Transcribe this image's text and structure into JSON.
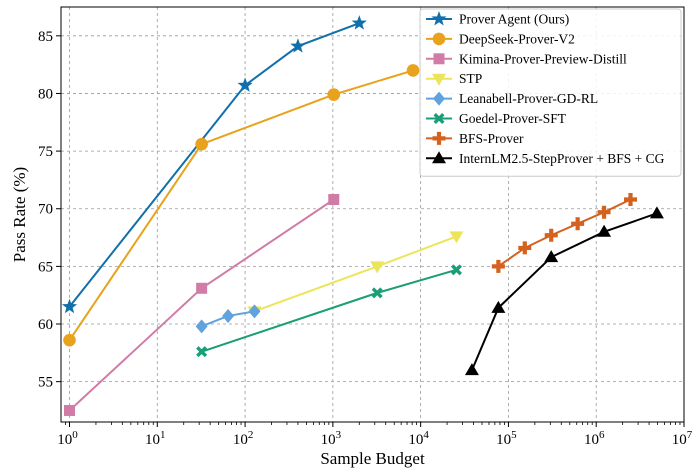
{
  "chart_data": {
    "type": "line",
    "xlabel": "Sample Budget",
    "ylabel": "Pass Rate (%)",
    "xscale": "log",
    "xlim": [
      0.8,
      10000000
    ],
    "ylim": [
      51.5,
      87.5
    ],
    "x_ticks": [
      1,
      10,
      100,
      1000,
      10000,
      100000,
      1000000,
      10000000
    ],
    "x_tick_labels": [
      {
        "base": "10",
        "exp": "0"
      },
      {
        "base": "10",
        "exp": "1"
      },
      {
        "base": "10",
        "exp": "2"
      },
      {
        "base": "10",
        "exp": "3"
      },
      {
        "base": "10",
        "exp": "4"
      },
      {
        "base": "10",
        "exp": "5"
      },
      {
        "base": "10",
        "exp": "6"
      },
      {
        "base": "10",
        "exp": "7"
      }
    ],
    "y_ticks": [
      55,
      60,
      65,
      70,
      75,
      80,
      85
    ],
    "grid": true,
    "legend_position": "top-right",
    "series": [
      {
        "name": "Prover Agent (Ours)",
        "color": "#1170aa",
        "marker": "star",
        "x": [
          1,
          100,
          400,
          2000
        ],
        "y": [
          61.5,
          80.7,
          84.1,
          86.1
        ]
      },
      {
        "name": "DeepSeek-Prover-V2",
        "color": "#e8a21b",
        "marker": "circle",
        "x": [
          1,
          32,
          1024,
          8192
        ],
        "y": [
          58.6,
          75.6,
          79.9,
          82.0
        ]
      },
      {
        "name": "Kimina-Prover-Preview-Distill",
        "color": "#d17ca7",
        "marker": "square",
        "x": [
          1,
          32,
          1024
        ],
        "y": [
          52.5,
          63.1,
          70.8
        ]
      },
      {
        "name": "STP",
        "color": "#ece55a",
        "marker": "triangle-down",
        "x": [
          128,
          3200,
          25600
        ],
        "y": [
          61.1,
          65.0,
          67.6
        ]
      },
      {
        "name": "Leanabell-Prover-GD-RL",
        "color": "#5fa2dd",
        "marker": "diamond",
        "x": [
          32,
          64,
          128
        ],
        "y": [
          59.8,
          60.7,
          61.1
        ]
      },
      {
        "name": "Goedel-Prover-SFT",
        "color": "#1a9e77",
        "marker": "x",
        "x": [
          32,
          3200,
          25600
        ],
        "y": [
          57.6,
          62.7,
          64.7
        ]
      },
      {
        "name": "BFS-Prover",
        "color": "#d4611e",
        "marker": "plus",
        "x": [
          76800,
          153600,
          307200,
          614400,
          1228800,
          2457600
        ],
        "y": [
          65.0,
          66.6,
          67.7,
          68.7,
          69.7,
          70.8
        ]
      },
      {
        "name": "InternLM2.5-StepProver + BFS + CG",
        "color": "#000000",
        "marker": "triangle-up",
        "x": [
          38400,
          76800,
          307200,
          1228800,
          4915200
        ],
        "y": [
          56.0,
          61.4,
          65.8,
          68.0,
          69.6
        ]
      }
    ]
  }
}
